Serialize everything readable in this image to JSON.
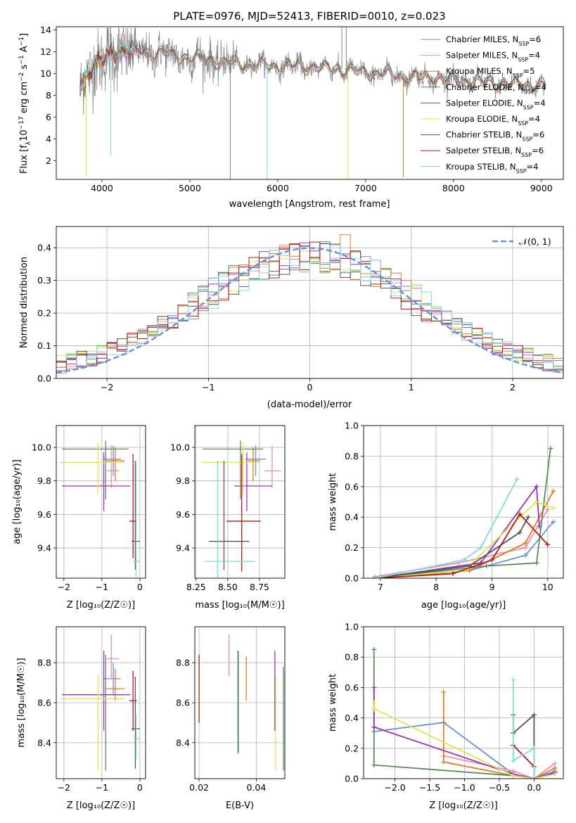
{
  "figure": {
    "title": "PLATE=0976, MJD=52413, FIBERID=0010, z=0.023"
  },
  "colors": {
    "Chabrier MILES": "#6b8fd8",
    "Salpeter MILES": "#e58fb5",
    "Kroupa MILES": "#e5791a",
    "Chabrier ELODIE": "#5a8a5a",
    "Salpeter ELODIE": "#9b30c0",
    "Kroupa ELODIE": "#d8e84a",
    "Chabrier STELIB": "#555555",
    "Salpeter STELIB": "#b01818",
    "Kroupa STELIB": "#7fdada",
    "data": "#808080"
  },
  "chart_data": [
    {
      "id": "spectrum",
      "type": "line",
      "title": "PLATE=0976, MJD=52413, FIBERID=0010, z=0.023",
      "xlabel": "wavelength [Angstrom, rest frame]",
      "ylabel_parts": [
        "Flux [f",
        "λ",
        "10",
        "−17",
        " erg cm",
        "−2",
        " s",
        "−1",
        " A",
        "−1",
        "]"
      ],
      "xlim": [
        3480,
        9250
      ],
      "ylim": [
        0.3,
        14.3
      ],
      "xticks": [
        4000,
        5000,
        6000,
        7000,
        8000,
        9000
      ],
      "yticks": [
        2,
        4,
        6,
        8,
        10,
        12,
        14
      ],
      "grid": false,
      "legend_position": "top-right",
      "legend": [
        {
          "name": "Chabrier MILES",
          "nssp": "6"
        },
        {
          "name": "Salpeter MILES",
          "nssp": "4"
        },
        {
          "name": "Kroupa MILES",
          "nssp": "5"
        },
        {
          "name": "Chabrier ELODIE",
          "nssp": "4"
        },
        {
          "name": "Salpeter ELODIE",
          "nssp": "4"
        },
        {
          "name": "Kroupa ELODIE",
          "nssp": "4"
        },
        {
          "name": "Chabrier STELIB",
          "nssp": "6"
        },
        {
          "name": "Salpeter STELIB",
          "nssp": "6"
        },
        {
          "name": "Kroupa STELIB",
          "nssp": "4"
        }
      ],
      "continuum_points": {
        "x": [
          3750,
          3850,
          3950,
          4050,
          4150,
          4250,
          4350,
          4450,
          4550,
          4650,
          4750,
          4850,
          5000,
          5200,
          5400,
          5600,
          5800,
          6000,
          6200,
          6400,
          6600,
          6800,
          7000,
          7200,
          7400,
          7600,
          7800,
          8000,
          8200,
          8400,
          8600,
          8800,
          9000
        ],
        "y": [
          8.5,
          10.5,
          10.8,
          11.5,
          12.0,
          12.2,
          12.0,
          12.0,
          11.8,
          11.9,
          11.8,
          11.6,
          11.4,
          11.3,
          11.0,
          10.9,
          10.8,
          10.7,
          10.7,
          10.6,
          10.5,
          10.3,
          10.1,
          10.0,
          9.8,
          9.7,
          9.6,
          9.4,
          9.3,
          9.2,
          9.0,
          9.0,
          8.9
        ]
      },
      "spikes": [
        {
          "x": 3820,
          "y": 0.5,
          "series": "Kroupa ELODIE"
        },
        {
          "x": 4100,
          "y": 2.5,
          "series": "Kroupa STELIB"
        },
        {
          "x": 5460,
          "y": 0.3,
          "series": "data"
        },
        {
          "x": 5880,
          "y": 0.3,
          "series": "Kroupa STELIB"
        },
        {
          "x": 6800,
          "y": 0.3,
          "series": "Kroupa ELODIE"
        },
        {
          "x": 7430,
          "y": 0.5,
          "series": "Kroupa MILES"
        },
        {
          "x": 6730,
          "y": 14.3,
          "series": "data"
        },
        {
          "x": 6780,
          "y": 14.3,
          "series": "data"
        }
      ]
    },
    {
      "id": "residuals",
      "type": "histogram",
      "xlabel": "(data-model)/error",
      "ylabel": "Normed distribution",
      "xlim": [
        -2.5,
        2.5
      ],
      "ylim": [
        0,
        0.465
      ],
      "xticks": [
        -2,
        -1,
        0,
        1,
        2
      ],
      "yticks": [
        0.0,
        0.1,
        0.2,
        0.3,
        0.4
      ],
      "grid": true,
      "legend_position": "top-right",
      "gaussian_label": "𝒩(0, 1)",
      "bin_width": 0.1,
      "bins_start": -2.5
    },
    {
      "id": "age-vs-Z",
      "type": "errorbar",
      "xlabel": "Z [log₁₀(Z/Z☉)]",
      "ylabel": "age  [log₁₀(age/yr)]",
      "xlim": [
        -2.2,
        0.15
      ],
      "ylim": [
        9.22,
        10.13
      ],
      "xticks": [
        -2,
        -1,
        0
      ],
      "yticks": [
        9.4,
        9.6,
        9.8,
        10.0
      ],
      "grid": true,
      "points": [
        {
          "series": "Chabrier MILES",
          "x": -0.7,
          "y": 9.93,
          "xerr": [
            0.25,
            0.2
          ],
          "yerr": [
            0.1,
            0.08
          ]
        },
        {
          "series": "Salpeter MILES",
          "x": -0.75,
          "y": 9.86,
          "xerr": [
            0.12,
            0.2
          ],
          "yerr": [
            0.1,
            0.15
          ]
        },
        {
          "series": "Kroupa MILES",
          "x": -0.65,
          "y": 9.92,
          "xerr": [
            0.25,
            0.25
          ],
          "yerr": [
            0.12,
            0.08
          ]
        },
        {
          "series": "Chabrier ELODIE",
          "x": -0.9,
          "y": 9.99,
          "xerr": [
            1.15,
            0.6
          ],
          "yerr": [
            0.3,
            0.05
          ]
        },
        {
          "series": "Salpeter ELODIE",
          "x": -0.95,
          "y": 9.77,
          "xerr": [
            1.1,
            0.7
          ],
          "yerr": [
            0.15,
            0.2
          ]
        },
        {
          "series": "Kroupa ELODIE",
          "x": -1.1,
          "y": 9.91,
          "xerr": [
            1.0,
            0.7
          ],
          "yerr": [
            0.19,
            0.12
          ]
        },
        {
          "series": "Chabrier STELIB",
          "x": -0.12,
          "y": 9.44,
          "xerr": [
            0.1,
            0.12
          ],
          "yerr": [
            0.17,
            0.48
          ]
        },
        {
          "series": "Salpeter STELIB",
          "x": -0.18,
          "y": 9.56,
          "xerr": [
            0.1,
            0.1
          ],
          "yerr": [
            0.22,
            0.4
          ]
        },
        {
          "series": "Kroupa STELIB",
          "x": -0.1,
          "y": 9.32,
          "xerr": [
            0.08,
            0.1
          ],
          "yerr": [
            0.2,
            0.6
          ]
        }
      ]
    },
    {
      "id": "age-vs-mass",
      "type": "errorbar",
      "xlabel": "mass [log₁₀(M/M☉)]",
      "ylabel": "",
      "xlim": [
        8.24,
        8.95
      ],
      "ylim": [
        9.22,
        10.13
      ],
      "xticks": [
        8.25,
        8.5,
        8.75
      ],
      "xticklabels": [
        "8.25",
        "8.50",
        "8.75"
      ],
      "yticks": [
        9.4,
        9.6,
        9.8,
        10.0
      ],
      "grid": true,
      "points": [
        {
          "series": "Chabrier MILES",
          "x": 8.72,
          "y": 9.93,
          "xerr": [
            0.08,
            0.08
          ],
          "yerr": [
            0.1,
            0.08
          ]
        },
        {
          "series": "Salpeter MILES",
          "x": 8.85,
          "y": 9.86,
          "xerr": [
            0.06,
            0.07
          ],
          "yerr": [
            0.1,
            0.15
          ]
        },
        {
          "series": "Kroupa MILES",
          "x": 8.7,
          "y": 9.92,
          "xerr": [
            0.04,
            0.05
          ],
          "yerr": [
            0.12,
            0.08
          ]
        },
        {
          "series": "Chabrier ELODIE",
          "x": 8.6,
          "y": 9.99,
          "xerr": [
            0.3,
            0.18
          ],
          "yerr": [
            0.3,
            0.05
          ]
        },
        {
          "series": "Salpeter ELODIE",
          "x": 8.65,
          "y": 9.77,
          "xerr": [
            0.1,
            0.2
          ],
          "yerr": [
            0.15,
            0.2
          ]
        },
        {
          "series": "Kroupa ELODIE",
          "x": 8.62,
          "y": 9.91,
          "xerr": [
            0.33,
            0.12
          ],
          "yerr": [
            0.19,
            0.12
          ]
        },
        {
          "series": "Chabrier STELIB",
          "x": 8.47,
          "y": 9.44,
          "xerr": [
            0.12,
            0.2
          ],
          "yerr": [
            0.17,
            0.48
          ]
        },
        {
          "series": "Salpeter STELIB",
          "x": 8.61,
          "y": 9.56,
          "xerr": [
            0.12,
            0.15
          ],
          "yerr": [
            0.3,
            0.4
          ]
        },
        {
          "series": "Kroupa STELIB",
          "x": 8.42,
          "y": 9.32,
          "xerr": [
            0.1,
            0.3
          ],
          "yerr": [
            0.2,
            0.6
          ]
        }
      ]
    },
    {
      "id": "weight-vs-age",
      "type": "line",
      "xlabel": "age  [log₁₀(age/yr)]",
      "ylabel": "mass weight",
      "xlim": [
        6.7,
        10.28
      ],
      "ylim": [
        0,
        1.0
      ],
      "xticks": [
        7,
        8,
        9,
        10
      ],
      "yticks": [
        0.0,
        0.2,
        0.4,
        0.6,
        0.8,
        1.0
      ],
      "grid": true,
      "series": [
        {
          "name": "Chabrier MILES",
          "x": [
            6.9,
            8.6,
            9.6,
            10.1
          ],
          "y": [
            0.0,
            0.05,
            0.15,
            0.37
          ]
        },
        {
          "name": "Salpeter MILES",
          "x": [
            6.9,
            8.4,
            9.6,
            10.0
          ],
          "y": [
            0.01,
            0.1,
            0.2,
            0.45
          ]
        },
        {
          "name": "Kroupa MILES",
          "x": [
            6.9,
            8.6,
            9.6,
            10.1
          ],
          "y": [
            0.0,
            0.05,
            0.23,
            0.57
          ]
        },
        {
          "name": "Chabrier ELODIE",
          "x": [
            6.9,
            8.9,
            9.8,
            10.05
          ],
          "y": [
            0.0,
            0.08,
            0.1,
            0.85
          ]
        },
        {
          "name": "Salpeter ELODIE",
          "x": [
            6.9,
            8.8,
            9.8,
            9.85
          ],
          "y": [
            0.0,
            0.1,
            0.6,
            0.34
          ]
        },
        {
          "name": "Kroupa ELODIE",
          "x": [
            6.9,
            8.5,
            9.5,
            9.8,
            10.1
          ],
          "y": [
            0.0,
            0.05,
            0.4,
            0.5,
            0.46
          ]
        },
        {
          "name": "Chabrier STELIB",
          "x": [
            6.9,
            8.6,
            9.5,
            9.65
          ],
          "y": [
            0.0,
            0.08,
            0.3,
            0.4
          ]
        },
        {
          "name": "Salpeter STELIB",
          "x": [
            6.9,
            8.3,
            9.0,
            9.5,
            10.0
          ],
          "y": [
            0.0,
            0.03,
            0.12,
            0.42,
            0.22
          ]
        },
        {
          "name": "Kroupa STELIB",
          "x": [
            6.9,
            8.5,
            8.8,
            9.45
          ],
          "y": [
            0.0,
            0.12,
            0.2,
            0.65
          ]
        }
      ]
    },
    {
      "id": "mass-vs-Z",
      "type": "errorbar",
      "xlabel": "Z [log₁₀(Z/Z☉)]",
      "ylabel": "mass [log₁₀(M/M☉)]",
      "xlim": [
        -2.2,
        0.15
      ],
      "ylim": [
        8.22,
        8.98
      ],
      "xticks": [
        -2,
        -1,
        0
      ],
      "yticks": [
        8.4,
        8.6,
        8.8
      ],
      "grid": true,
      "points": [
        {
          "series": "Chabrier MILES",
          "x": -0.7,
          "y": 8.72,
          "xerr": [
            0.25,
            0.2
          ],
          "yerr": [
            0.08,
            0.08
          ]
        },
        {
          "series": "Salpeter MILES",
          "x": -0.75,
          "y": 8.82,
          "xerr": [
            0.12,
            0.2
          ],
          "yerr": [
            0.1,
            0.12
          ]
        },
        {
          "series": "Kroupa MILES",
          "x": -0.65,
          "y": 8.67,
          "xerr": [
            0.25,
            0.25
          ],
          "yerr": [
            0.06,
            0.1
          ]
        },
        {
          "series": "Chabrier ELODIE",
          "x": -0.9,
          "y": 8.64,
          "xerr": [
            1.15,
            0.6
          ],
          "yerr": [
            0.38,
            0.2
          ]
        },
        {
          "series": "Salpeter ELODIE",
          "x": -0.95,
          "y": 8.64,
          "xerr": [
            1.1,
            0.7
          ],
          "yerr": [
            0.18,
            0.22
          ]
        },
        {
          "series": "Kroupa ELODIE",
          "x": -1.1,
          "y": 8.62,
          "xerr": [
            1.0,
            0.7
          ],
          "yerr": [
            0.36,
            0.12
          ]
        },
        {
          "series": "Chabrier STELIB",
          "x": -0.12,
          "y": 8.47,
          "xerr": [
            0.1,
            0.12
          ],
          "yerr": [
            0.2,
            0.26
          ]
        },
        {
          "series": "Salpeter STELIB",
          "x": -0.18,
          "y": 8.61,
          "xerr": [
            0.1,
            0.1
          ],
          "yerr": [
            0.15,
            0.15
          ]
        },
        {
          "series": "Kroupa STELIB",
          "x": -0.1,
          "y": 8.42,
          "xerr": [
            0.08,
            0.1
          ],
          "yerr": [
            0.1,
            0.12
          ]
        }
      ]
    },
    {
      "id": "mass-vs-ebv",
      "type": "errorbar",
      "xlabel": "E(B-V)",
      "ylabel": "",
      "xlim": [
        0.0185,
        0.05
      ],
      "ylim": [
        8.22,
        8.98
      ],
      "xticks": [
        0.02,
        0.04
      ],
      "yticks": [
        8.4,
        8.6,
        8.8
      ],
      "grid": true,
      "points": [
        {
          "series": "Salpeter STELIB",
          "x": 0.02,
          "y": 8.67,
          "yerr": [
            0.17,
            0.17
          ]
        },
        {
          "series": "Salpeter MILES",
          "x": 0.0305,
          "y": 8.83,
          "yerr": [
            0.1,
            0.11
          ]
        },
        {
          "series": "Kroupa STELIB",
          "x": 0.0335,
          "y": 8.6,
          "yerr": [
            0.26,
            0.26
          ]
        },
        {
          "series": "Chabrier STELIB",
          "x": 0.0337,
          "y": 8.6,
          "yerr": [
            0.25,
            0.26
          ]
        },
        {
          "series": "Kroupa MILES",
          "x": 0.0365,
          "y": 8.72,
          "yerr": [
            0.11,
            0.11
          ]
        },
        {
          "series": "Salpeter ELODIE",
          "x": 0.0465,
          "y": 8.64,
          "yerr": [
            0.18,
            0.22
          ]
        },
        {
          "series": "Kroupa ELODIE",
          "x": 0.0468,
          "y": 8.5,
          "yerr": [
            0.24,
            0.24
          ]
        },
        {
          "series": "Chabrier ELODIE",
          "x": 0.0495,
          "y": 8.52,
          "yerr": [
            0.26,
            0.26
          ]
        }
      ]
    },
    {
      "id": "weight-vs-Z",
      "type": "line",
      "xlabel": "Z [log₁₀(Z/Z☉)]",
      "ylabel": "mass weight",
      "xlim": [
        -2.45,
        0.42
      ],
      "ylim": [
        0,
        1.0
      ],
      "xticks": [
        -2.0,
        -1.5,
        -1.0,
        -0.5,
        0.0
      ],
      "xticklabels": [
        "−2.0",
        "−1.5",
        "−1.0",
        "−0.5",
        "0.0"
      ],
      "yticks": [
        0.0,
        0.2,
        0.4,
        0.6,
        0.8,
        1.0
      ],
      "grid": true,
      "series": [
        {
          "name": "Chabrier MILES",
          "x": [
            -2.3,
            -1.3,
            -0.3,
            0.0,
            0.3
          ],
          "y": [
            0.31,
            0.37,
            0.03,
            0.0,
            0.05
          ]
        },
        {
          "name": "Salpeter MILES",
          "x": [
            -1.3,
            -0.3,
            0.0,
            0.3
          ],
          "y": [
            0.15,
            0.05,
            0.0,
            0.1
          ]
        },
        {
          "name": "Kroupa MILES",
          "x": [
            -1.3,
            -1.3,
            -0.3,
            0.0,
            0.3
          ],
          "y": [
            0.57,
            0.11,
            0.02,
            0.0,
            0.07
          ]
        },
        {
          "name": "Chabrier ELODIE",
          "x": [
            -2.3,
            -2.3,
            -0.3,
            0.0
          ],
          "y": [
            0.85,
            0.09,
            0.02,
            0.0
          ]
        },
        {
          "name": "Salpeter ELODIE",
          "x": [
            -2.3,
            -2.3,
            -0.3,
            0.0,
            0.3
          ],
          "y": [
            0.6,
            0.34,
            0.03,
            0.0,
            0.04
          ]
        },
        {
          "name": "Kroupa ELODIE",
          "x": [
            -2.3,
            -2.3,
            -0.3,
            0.0,
            0.3
          ],
          "y": [
            0.5,
            0.46,
            0.02,
            0.0,
            0.03
          ]
        },
        {
          "name": "Chabrier STELIB",
          "x": [
            -0.3,
            -0.3,
            0.0,
            0.0
          ],
          "y": [
            0.42,
            0.3,
            0.42,
            0.0
          ]
        },
        {
          "name": "Salpeter STELIB",
          "x": [
            -0.3,
            0.0,
            0.0
          ],
          "y": [
            0.22,
            0.08,
            0.0
          ]
        },
        {
          "name": "Kroupa STELIB",
          "x": [
            -0.3,
            -0.3,
            0.0,
            0.0
          ],
          "y": [
            0.65,
            0.12,
            0.2,
            0.0
          ]
        }
      ]
    }
  ]
}
